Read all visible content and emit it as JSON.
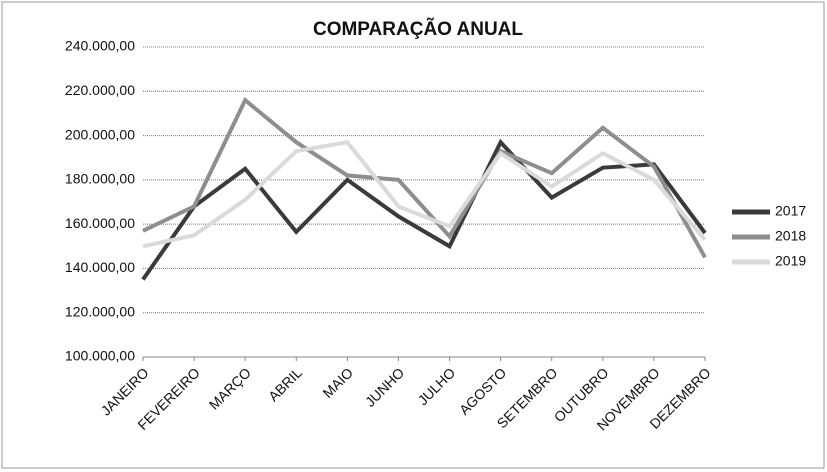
{
  "chart_data": {
    "type": "line",
    "title": "COMPARAÇÃO ANUAL",
    "categories": [
      "JANEIRO",
      "FEVEREIRO",
      "MARÇO",
      "ABRIL",
      "MAIO",
      "JUNHO",
      "JULHO",
      "AGOSTO",
      "SETEMBRO",
      "OUTUBRO",
      "NOVEMBRO",
      "DEZEMBRO"
    ],
    "series": [
      {
        "name": "2017",
        "color": "#3a3a3a",
        "values": [
          135000,
          168000,
          185000,
          156500,
          180000,
          163500,
          150000,
          197000,
          172000,
          185500,
          187000,
          156000
        ]
      },
      {
        "name": "2018",
        "color": "#8e8e8e",
        "values": [
          157000,
          168000,
          216000,
          197000,
          182000,
          180000,
          154500,
          193000,
          183000,
          203500,
          186000,
          145000
        ]
      },
      {
        "name": "2019",
        "color": "#dadada",
        "values": [
          150000,
          155000,
          171000,
          193000,
          197000,
          168000,
          159000,
          192000,
          177000,
          192000,
          180000,
          153000
        ]
      }
    ],
    "ylim": [
      100000,
      240000
    ],
    "yticks": [
      {
        "value": 100000,
        "label": "100.000,00"
      },
      {
        "value": 120000,
        "label": "120.000,00"
      },
      {
        "value": 140000,
        "label": "140.000,00"
      },
      {
        "value": 160000,
        "label": "160.000,00"
      },
      {
        "value": 180000,
        "label": "180.000,00"
      },
      {
        "value": 200000,
        "label": "200.000,00"
      },
      {
        "value": 220000,
        "label": "220.000,00"
      },
      {
        "value": 240000,
        "label": "240.000,00"
      }
    ],
    "grid": true,
    "legend": "right"
  }
}
